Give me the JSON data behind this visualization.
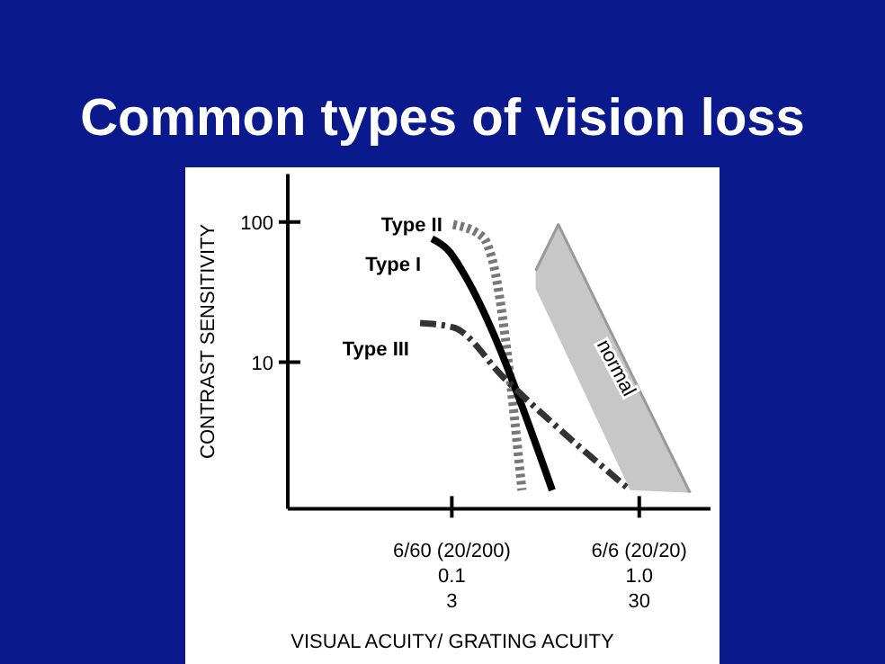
{
  "chart_data": {
    "type": "line",
    "title": "Common types of vision loss",
    "xlabel": "VISUAL ACUITY/ GRATING ACUITY",
    "ylabel": "CONTRAST SENSITIVITY",
    "log": "xy",
    "legend": false,
    "xlim": [
      0.4,
      72
    ],
    "ylim": [
      0.9,
      220
    ],
    "xticks": [
      3,
      30
    ],
    "annotations": [
      "6/60 (20/200)",
      "6/6 (20/20)",
      "0.1",
      "1.0"
    ],
    "yticks": [
      10,
      100
    ],
    "series": [
      {
        "name": "Type II",
        "color": "#777777",
        "line_style": "dotted",
        "x": [
          3.05,
          4.4,
          4.9,
          7.1
        ],
        "values": [
          96,
          78,
          55.6,
          1.22
        ]
      },
      {
        "name": "Type I",
        "color": "#000000",
        "line_style": "solid",
        "x": [
          2.35,
          2.93,
          3.4,
          10.3
        ],
        "values": [
          76,
          61,
          45,
          1.22
        ]
      },
      {
        "name": "Type III",
        "color": "#333333",
        "line_style": "dashed",
        "x": [
          2.03,
          3.05,
          5.7,
          26.8
        ],
        "values": [
          19,
          17.7,
          7.7,
          1.22
        ]
      },
      {
        "name": "normal",
        "color": "#999999",
        "line_style": "solid",
        "x": [
          8.4,
          11.1,
          26.8,
          56
        ],
        "values": [
          45,
          96,
          8.6,
          1.17
        ],
        "lower": [
          33.5,
          15.2,
          1.22,
          1.17
        ],
        "upper": [
          45,
          96,
          8.6,
          1.17
        ]
      }
    ]
  }
}
